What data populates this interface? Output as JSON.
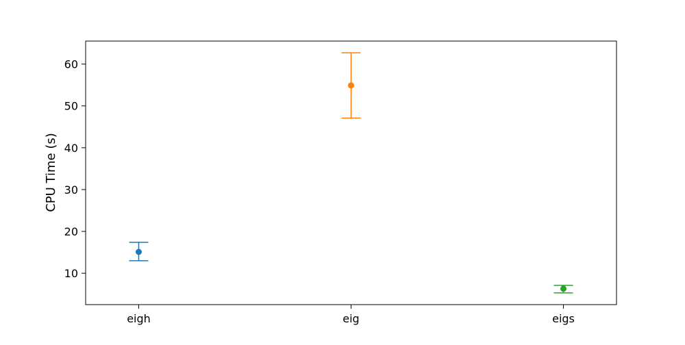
{
  "chart_data": {
    "type": "scatter",
    "title": "",
    "xlabel": "",
    "ylabel": "CPU Time (s)",
    "categories": [
      "eigh",
      "eig",
      "eigs"
    ],
    "ylim": [
      2.5,
      65.5
    ],
    "yticks": [
      10,
      20,
      30,
      40,
      50,
      60
    ],
    "ytick_labels": [
      "10",
      "20",
      "30",
      "40",
      "50",
      "60"
    ],
    "grid": false,
    "points": [
      {
        "category": "eigh",
        "value": 15.1,
        "err_low": 13.0,
        "err_high": 17.4,
        "color": "#1f77b4"
      },
      {
        "category": "eig",
        "value": 54.9,
        "err_low": 47.1,
        "err_high": 62.7,
        "color": "#ff7f0e"
      },
      {
        "category": "eigs",
        "value": 6.3,
        "err_low": 5.3,
        "err_high": 7.1,
        "color": "#2ca02c"
      }
    ]
  }
}
